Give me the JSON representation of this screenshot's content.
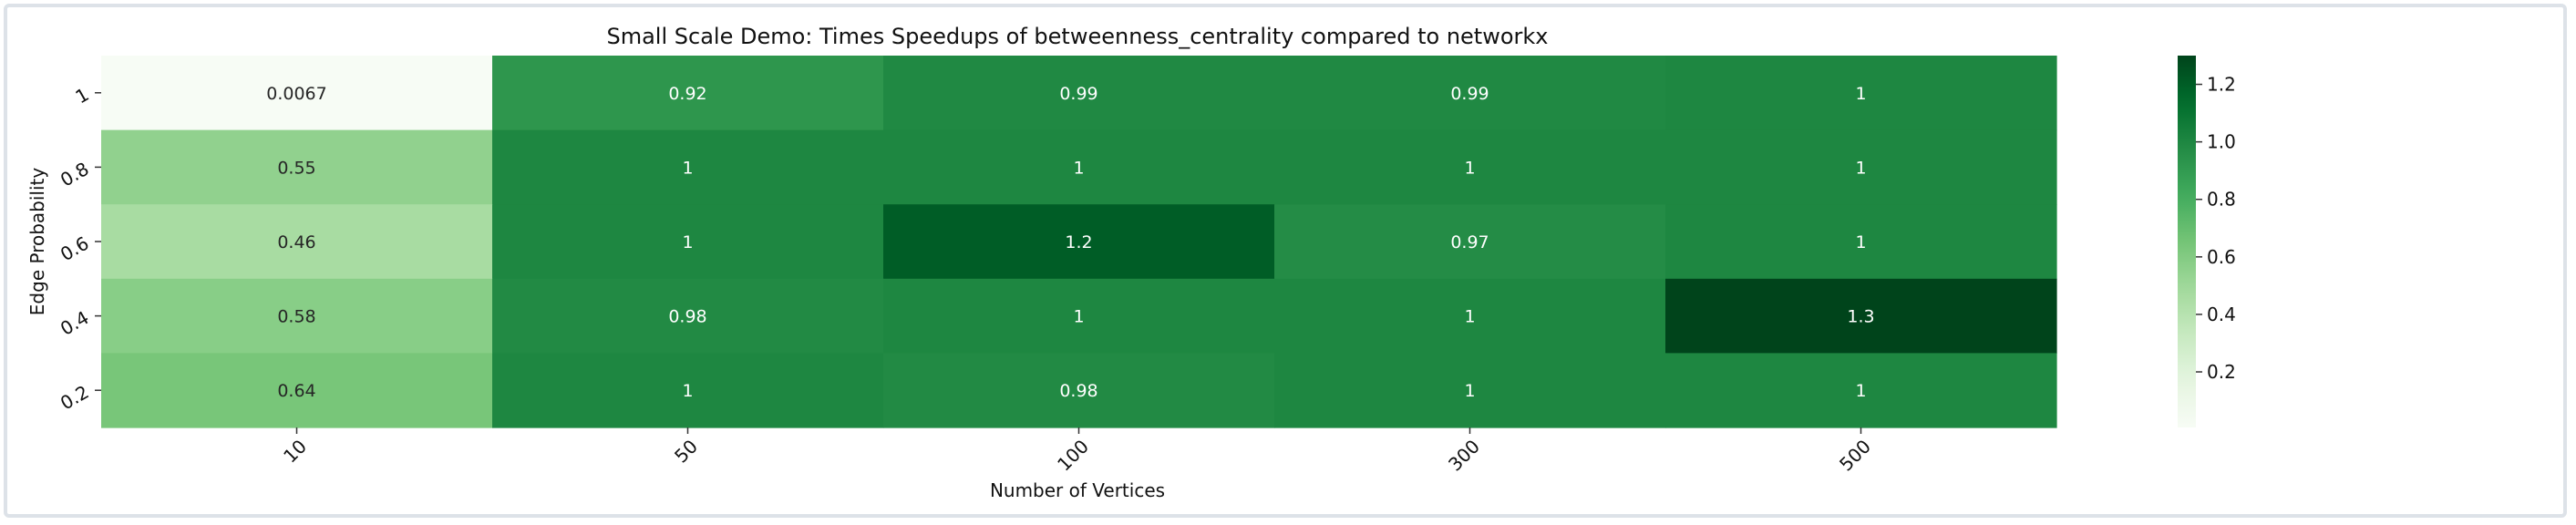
{
  "chart_data": {
    "type": "heatmap",
    "title": "Small Scale Demo: Times Speedups of betweenness_centrality compared to networkx",
    "xlabel": "Number of Vertices",
    "ylabel": "Edge Probability",
    "x_categories": [
      "10",
      "50",
      "100",
      "300",
      "500"
    ],
    "y_categories": [
      "1",
      "0.8",
      "0.6",
      "0.4",
      "0.2"
    ],
    "values": [
      [
        0.0067,
        0.92,
        0.99,
        0.99,
        1.0
      ],
      [
        0.55,
        1.0,
        1.0,
        1.0,
        1.0
      ],
      [
        0.46,
        1.0,
        1.2,
        0.97,
        1.0
      ],
      [
        0.58,
        0.98,
        1.0,
        1.0,
        1.3
      ],
      [
        0.64,
        1.0,
        0.98,
        1.0,
        1.0
      ]
    ],
    "labels": [
      [
        "0.0067",
        "0.92",
        "0.99",
        "0.99",
        "1"
      ],
      [
        "0.55",
        "1",
        "1",
        "1",
        "1"
      ],
      [
        "0.46",
        "1",
        "1.2",
        "0.97",
        "1"
      ],
      [
        "0.58",
        "0.98",
        "1",
        "1",
        "1.3"
      ],
      [
        "0.64",
        "1",
        "0.98",
        "1",
        "1"
      ]
    ],
    "colormap": "Greens",
    "color_range": [
      0.0067,
      1.3
    ],
    "colorbar_ticks": [
      "0.2",
      "0.4",
      "0.6",
      "0.8",
      "1.0",
      "1.2"
    ],
    "colorbar_tick_values": [
      0.2,
      0.4,
      0.6,
      0.8,
      1.0,
      1.2
    ],
    "grid": false,
    "legend": "colorbar-right"
  }
}
